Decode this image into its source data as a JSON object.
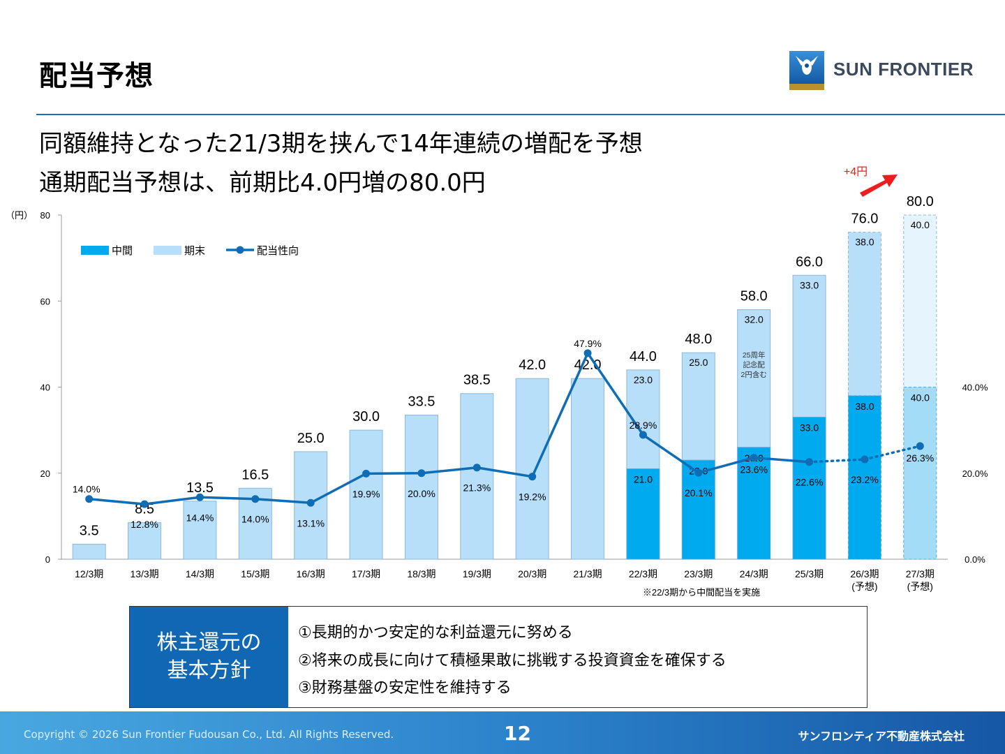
{
  "header": {
    "title": "配当予想",
    "logo_text": "SUN FRONTIER"
  },
  "headline": {
    "line1": "同額維持となった21/3期を挟んで14年連続の増配を予想",
    "line2": "通期配当予想は、前期比4.0円増の80.0円"
  },
  "colors": {
    "interim": "#00aaee",
    "year_end": "#b7dffa",
    "payout_line": "#0e6db5",
    "forecast_interim": "#a3dcf6",
    "forecast_year_end": "#e6f4fd",
    "arrow": "#ee1c1c",
    "title_rule": "#1a70b7",
    "policy_label_bg": "#1068b4"
  },
  "chart_data": {
    "type": "bar",
    "y_unit": "（円）",
    "ylim": [
      0,
      80
    ],
    "y_ticks": [
      "0",
      "20",
      "40",
      "60",
      "80"
    ],
    "y2lim": [
      0,
      80
    ],
    "y2_ticks": [
      "0.0%",
      "20.0%",
      "40.0%"
    ],
    "legend": {
      "position": "top-left",
      "interim": "中間",
      "year_end": "期末",
      "payout": "配当性向"
    },
    "categories": [
      [
        "12/3期"
      ],
      [
        "13/3期"
      ],
      [
        "14/3期"
      ],
      [
        "15/3期"
      ],
      [
        "16/3期"
      ],
      [
        "17/3期"
      ],
      [
        "18/3期"
      ],
      [
        "19/3期"
      ],
      [
        "20/3期"
      ],
      [
        "21/3期"
      ],
      [
        "22/3期"
      ],
      [
        "23/3期"
      ],
      [
        "24/3期"
      ],
      [
        "25/3期"
      ],
      [
        "26/3期",
        "(予想)"
      ],
      [
        "27/3期",
        "(予想)"
      ]
    ],
    "interim": [
      0,
      0,
      0,
      0,
      0,
      0,
      0,
      0,
      0,
      0,
      21.0,
      23.0,
      26.0,
      33.0,
      38.0,
      40.0
    ],
    "year_end": [
      3.5,
      8.5,
      13.5,
      16.5,
      25.0,
      30.0,
      33.5,
      38.5,
      42.0,
      42.0,
      23.0,
      25.0,
      32.0,
      33.0,
      38.0,
      40.0
    ],
    "totals": [
      "3.5",
      "8.5",
      "13.5",
      "16.5",
      "25.0",
      "30.0",
      "33.5",
      "38.5",
      "42.0",
      "42.0",
      "44.0",
      "48.0",
      "58.0",
      "66.0",
      "76.0",
      "80.0"
    ],
    "interim_labels": [
      "",
      "",
      "",
      "",
      "",
      "",
      "",
      "",
      "",
      "",
      "21.0",
      "23.0",
      "26.0",
      "33.0",
      "38.0",
      "40.0"
    ],
    "year_end_labels": [
      "",
      "",
      "",
      "",
      "",
      "",
      "",
      "",
      "",
      "",
      "23.0",
      "25.0",
      "32.0",
      "33.0",
      "38.0",
      "40.0"
    ],
    "payout_ratio": [
      14.0,
      12.8,
      14.4,
      14.0,
      13.1,
      19.9,
      20.0,
      21.3,
      19.2,
      47.9,
      28.9,
      20.1,
      23.6,
      22.6,
      23.2,
      26.3
    ],
    "payout_labels": [
      "14.0%",
      "12.8%",
      "14.4%",
      "14.0%",
      "13.1%",
      "19.9%",
      "20.0%",
      "21.3%",
      "19.2%",
      "47.9%",
      "28.9%",
      "20.1%",
      "23.6%",
      "22.6%",
      "23.2%",
      "26.3%"
    ],
    "forecast_start_index": 14,
    "annotation_commemorative": [
      "25周年",
      "記念配",
      "2円含む"
    ],
    "annotation_increase": "+4円",
    "note": "※22/3期から中間配当を実施"
  },
  "policy": {
    "label_lines": [
      "株主還元の",
      "基本方針"
    ],
    "items": [
      "①長期的かつ安定的な利益還元に努める",
      "②将来の成長に向けて積極果敢に挑戦する投資資金を確保する",
      "③財務基盤の安定性を維持する"
    ]
  },
  "footer": {
    "copyright": "Copyright © 2026 Sun Frontier Fudousan Co., Ltd. All Rights Reserved.",
    "page_number": "12",
    "company": "サンフロンティア不動産株式会社"
  }
}
